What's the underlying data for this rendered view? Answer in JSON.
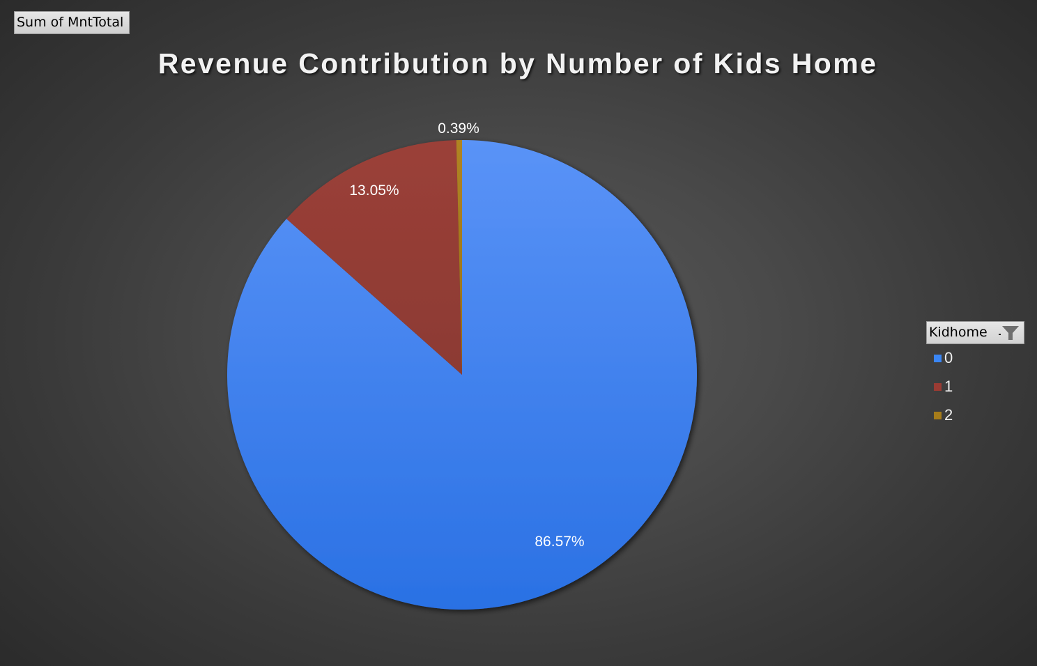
{
  "field_button": {
    "label": "Sum of MntTotal"
  },
  "chart_title": "Revenue Contribution by Number of Kids Home",
  "legend": {
    "title": "Kidhome",
    "filter_icon": "funnel-filter-icon",
    "items": [
      {
        "label": "0",
        "color": "#3a86f5"
      },
      {
        "label": "1",
        "color": "#9a3b33"
      },
      {
        "label": "2",
        "color": "#a67c1a"
      }
    ]
  },
  "data_labels": [
    {
      "category": "0",
      "text": "86.57%"
    },
    {
      "category": "1",
      "text": "13.05%"
    },
    {
      "category": "2",
      "text": "0.39%"
    }
  ],
  "chart_data": {
    "type": "pie",
    "title": "Revenue Contribution by Number of Kids Home",
    "value_field": "Sum of MntTotal",
    "legend_title": "Kidhome",
    "legend_position": "right",
    "categories": [
      "0",
      "1",
      "2"
    ],
    "values": [
      86.57,
      13.05,
      0.39
    ],
    "value_format": "percent",
    "colors": [
      "#3a86f5",
      "#9a3b33",
      "#a67c1a"
    ],
    "start_angle_deg": 0,
    "direction": "clockwise"
  }
}
